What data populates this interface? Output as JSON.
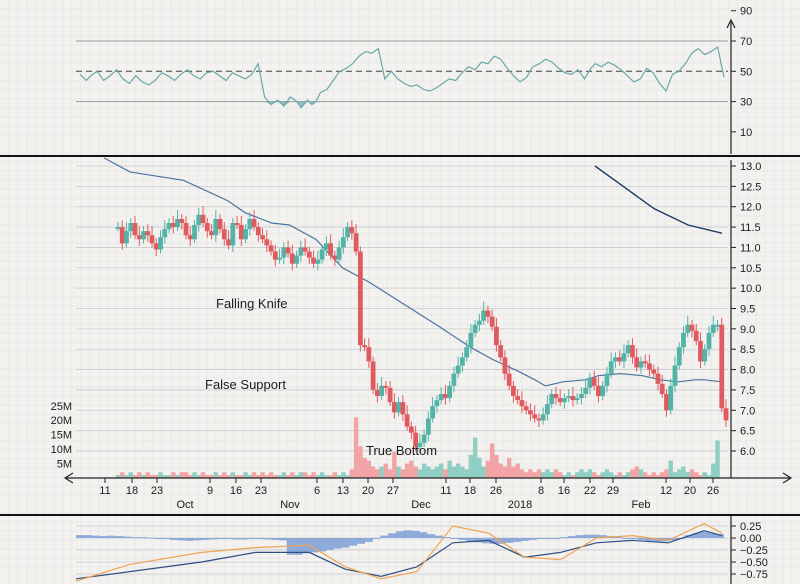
{
  "chart_data": [
    {
      "panel": "rsi",
      "type": "line",
      "y_ticks": [
        "90",
        "70",
        "50",
        "30",
        "10"
      ],
      "y_tick_values": [
        90,
        70,
        50,
        30,
        10
      ],
      "reference_lines": [
        70,
        50,
        30
      ],
      "ylim": [
        0,
        100
      ],
      "x": [
        0,
        3,
        5,
        8,
        11,
        14,
        17,
        20,
        23,
        26,
        29,
        32,
        35,
        38,
        41,
        44,
        47,
        50,
        53,
        56,
        59,
        62,
        65,
        68,
        71,
        74,
        77,
        80,
        83,
        86,
        89,
        92,
        95,
        98,
        101,
        103,
        106,
        108,
        110,
        112,
        115,
        118,
        121,
        124,
        127,
        130,
        133,
        136,
        139,
        142,
        145,
        148,
        151,
        154,
        157,
        160,
        163,
        166,
        169,
        172,
        175,
        178,
        181,
        184,
        187,
        190,
        193,
        196,
        199,
        202,
        205,
        208,
        211,
        214,
        217,
        220,
        223,
        226,
        229,
        232,
        235,
        238,
        240,
        243,
        246,
        249,
        252,
        255,
        258,
        261,
        264,
        267,
        270,
        273,
        276,
        279,
        282,
        285,
        288,
        291,
        294,
        297,
        300
      ],
      "series": [
        {
          "values": [
            48,
            44,
            47,
            50,
            44,
            47,
            51,
            45,
            42,
            47,
            43,
            41,
            44,
            49,
            47,
            44,
            48,
            51,
            47,
            45,
            49,
            50,
            47,
            44,
            49,
            47,
            45,
            48,
            55,
            33,
            28,
            31,
            27,
            33,
            30,
            26,
            31,
            28,
            30,
            36,
            38,
            44,
            50,
            52,
            55,
            60,
            63,
            62,
            65,
            45,
            50,
            45,
            42,
            40,
            41,
            38,
            37,
            39,
            42,
            45,
            44,
            49,
            53,
            51,
            56,
            55,
            60,
            58,
            52,
            47,
            43,
            46,
            53,
            55,
            58,
            56,
            52,
            49,
            48,
            51,
            45,
            52,
            55,
            53,
            56,
            54,
            51,
            47,
            43,
            45,
            52,
            49,
            42,
            37,
            48,
            50,
            55,
            62,
            65,
            61,
            63,
            66,
            46
          ]
        }
      ],
      "shaded_below": 30
    },
    {
      "panel": "price",
      "type": "candlestick",
      "x_ticks": [
        "11",
        "18",
        "23",
        "Oct",
        "9",
        "16",
        "23",
        "Nov",
        "6",
        "13",
        "20",
        "27",
        "Dec",
        "11",
        "18",
        "26",
        "2018",
        "8",
        "16",
        "22",
        "29",
        "Feb",
        "12",
        "20",
        "26"
      ],
      "y_ticks": [
        "13.0",
        "12.5",
        "12.0",
        "11.5",
        "11.0",
        "10.5",
        "10.0",
        "9.5",
        "9.0",
        "8.5",
        "8.0",
        "7.5",
        "7.0",
        "6.5",
        "6.0"
      ],
      "y_tick_values": [
        13.0,
        12.5,
        12.0,
        11.5,
        11.0,
        10.5,
        10.0,
        9.5,
        9.0,
        8.5,
        8.0,
        7.5,
        7.0,
        6.5,
        6.0
      ],
      "ylim": [
        5.6,
        13.4
      ],
      "close": [
        11.5,
        11.1,
        11.4,
        11.6,
        11.3,
        11.2,
        11.4,
        11.3,
        11.1,
        10.95,
        11.25,
        11.45,
        11.6,
        11.5,
        11.7,
        11.6,
        11.3,
        11.2,
        11.55,
        11.8,
        11.6,
        11.4,
        11.3,
        11.7,
        11.45,
        11.2,
        11.05,
        11.6,
        11.55,
        11.2,
        11.45,
        11.7,
        11.5,
        11.3,
        11.2,
        11.05,
        10.9,
        10.7,
        10.75,
        11.0,
        10.85,
        10.6,
        10.8,
        11.0,
        10.9,
        10.75,
        10.6,
        10.7,
        10.95,
        11.1,
        10.8,
        10.7,
        11.0,
        11.25,
        11.5,
        11.35,
        10.9,
        8.6,
        8.55,
        8.2,
        7.5,
        7.35,
        7.6,
        7.55,
        7.2,
        6.95,
        7.2,
        6.9,
        6.6,
        6.45,
        6.1,
        6.2,
        6.4,
        6.8,
        7.1,
        7.25,
        7.4,
        7.3,
        7.6,
        7.9,
        8.1,
        8.3,
        8.55,
        8.9,
        9.1,
        9.2,
        9.45,
        9.3,
        9.05,
        8.6,
        8.3,
        7.9,
        7.6,
        7.35,
        7.25,
        7.1,
        7.0,
        6.9,
        6.8,
        6.75,
        6.9,
        7.15,
        7.4,
        7.3,
        7.2,
        7.3,
        7.35,
        7.25,
        7.3,
        7.4,
        7.55,
        7.8,
        7.6,
        7.35,
        7.6,
        7.9,
        8.2,
        8.3,
        8.2,
        8.4,
        8.6,
        8.3,
        8.05,
        8.2,
        8.15,
        8.0,
        7.9,
        7.65,
        7.4,
        7.0,
        7.6,
        8.1,
        8.55,
        8.9,
        9.1,
        8.95,
        8.7,
        8.2,
        8.5,
        8.9,
        9.1,
        9.1,
        7.05,
        6.75
      ],
      "ma_long": {
        "x": [
          0,
          30,
          90,
          140,
          160,
          190,
          210,
          240,
          270,
          300,
          340,
          380,
          415,
          440,
          470,
          488,
          500,
          520,
          545,
          560,
          585,
          610,
          630,
          650,
          670,
          680,
          700
        ],
        "values": [
          13.2,
          12.85,
          12.65,
          12.15,
          11.85,
          11.6,
          11.55,
          11.2,
          10.5,
          10.15,
          9.6,
          9.05,
          8.55,
          8.25,
          7.95,
          7.75,
          7.6,
          7.7,
          7.75,
          7.85,
          7.9,
          7.85,
          7.75,
          7.7,
          7.75,
          7.75,
          7.7
        ]
      },
      "ma_upper": {
        "x": [
          570,
          600,
          640,
          680,
          720
        ],
        "values": [
          13.0,
          12.55,
          11.95,
          11.55,
          11.35
        ]
      },
      "annotations": [
        "Falling Knife",
        "False Support",
        "True Bottom"
      ],
      "volume": {
        "y_ticks": [
          "25M",
          "20M",
          "15M",
          "10M",
          "5M"
        ],
        "y_tick_values": [
          25,
          20,
          15,
          10,
          5
        ],
        "values": [
          1,
          2,
          1,
          2,
          1,
          2,
          1,
          2,
          1,
          1,
          2,
          1,
          1,
          2,
          1,
          2,
          2,
          1,
          2,
          1,
          2,
          1,
          1,
          2,
          1,
          2,
          1,
          2,
          1,
          1,
          2,
          1,
          2,
          1,
          2,
          1,
          2,
          1,
          1,
          2,
          1,
          2,
          1,
          2,
          2,
          1,
          2,
          1,
          2,
          1,
          1,
          2,
          1,
          2,
          1,
          3,
          21,
          11,
          7,
          6,
          4,
          3,
          4,
          5,
          3,
          9,
          4,
          3,
          5,
          6,
          4,
          3,
          5,
          4,
          3,
          4,
          5,
          3,
          6,
          4,
          5,
          4,
          3,
          8,
          14,
          7,
          4,
          6,
          12,
          8,
          5,
          4,
          7,
          4,
          5,
          3,
          2,
          3,
          2,
          3,
          2,
          3,
          2,
          3,
          2,
          1,
          2,
          1,
          2,
          3,
          2,
          3,
          2,
          1,
          2,
          3,
          2,
          1,
          2,
          1,
          2,
          3,
          4,
          3,
          2,
          1,
          2,
          1,
          2,
          3,
          6,
          2,
          3,
          4,
          2,
          3,
          2,
          1,
          2,
          1,
          5,
          13
        ]
      }
    },
    {
      "panel": "macd",
      "type": "histogram+line",
      "y_ticks": [
        "0.25",
        "0.00",
        "−0.25",
        "−0.50",
        "−0.75"
      ],
      "y_tick_values": [
        0.25,
        0.0,
        -0.25,
        -0.5,
        -0.75
      ],
      "ylim": [
        -0.85,
        0.4
      ],
      "histogram": [
        0.06,
        0.06,
        0.05,
        0.04,
        0.05,
        0.04,
        0.03,
        0.02,
        0.02,
        0.01,
        -0.01,
        -0.02,
        -0.04,
        -0.05,
        -0.06,
        -0.05,
        -0.04,
        -0.03,
        -0.02,
        -0.02,
        -0.03,
        -0.03,
        -0.02,
        -0.02,
        -0.03,
        -0.04,
        -0.05,
        -0.35,
        -0.35,
        -0.32,
        -0.3,
        -0.28,
        -0.25,
        -0.22,
        -0.2,
        -0.16,
        -0.12,
        -0.08,
        0.0,
        0.05,
        0.1,
        0.14,
        0.16,
        0.15,
        0.12,
        0.08,
        0.05,
        0.02,
        -0.01,
        -0.04,
        -0.07,
        -0.09,
        -0.11,
        -0.12,
        -0.12,
        -0.1,
        -0.08,
        -0.06,
        -0.04,
        -0.02,
        -0.01,
        0.0,
        0.02,
        0.04,
        0.06,
        0.07,
        0.07,
        0.06,
        0.04,
        0.02,
        0.0,
        -0.02,
        -0.04,
        -0.06,
        -0.07,
        -0.07,
        -0.05,
        0.0,
        0.06,
        0.1,
        0.12,
        0.1,
        0.08
      ],
      "macd_line": {
        "x": [
          0,
          60,
          140,
          200,
          260,
          300,
          340,
          380,
          420,
          460,
          500,
          540,
          580,
          620,
          660,
          700,
          720
        ],
        "values": [
          -0.85,
          -0.7,
          -0.5,
          -0.3,
          -0.3,
          -0.65,
          -0.8,
          -0.6,
          -0.1,
          -0.05,
          -0.4,
          -0.3,
          -0.1,
          -0.05,
          -0.1,
          0.15,
          0.05
        ]
      },
      "signal_line": {
        "x": [
          0,
          60,
          140,
          200,
          260,
          300,
          340,
          380,
          420,
          460,
          500,
          540,
          580,
          620,
          660,
          700,
          720
        ],
        "values": [
          -0.9,
          -0.55,
          -0.3,
          -0.2,
          -0.15,
          -0.6,
          -0.85,
          -0.7,
          0.25,
          0.1,
          -0.4,
          -0.45,
          0.0,
          0.05,
          -0.05,
          0.3,
          0.1
        ]
      }
    }
  ],
  "colors": {
    "up": "#52b3a6",
    "down": "#e05b5f",
    "grid": "#c9c9cf",
    "rsi": "#6aa8a8",
    "ma": "#4a73a0",
    "ma_dark": "#1d3a66",
    "macd_bar": "#7c9fd6",
    "signal": "#f2a352",
    "macd_line": "#2d4f82"
  }
}
